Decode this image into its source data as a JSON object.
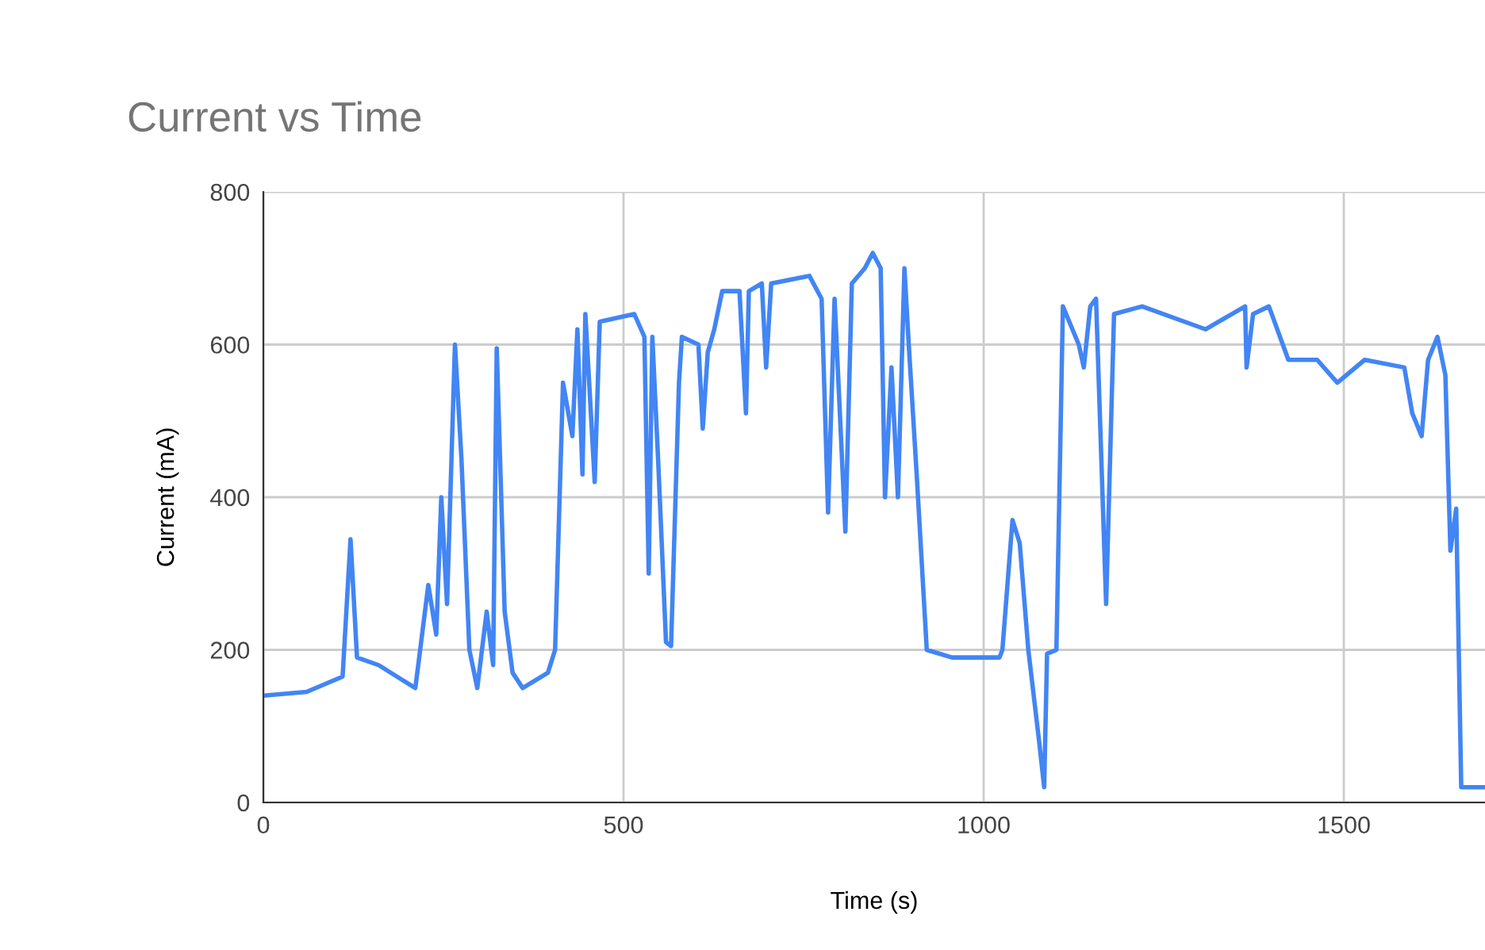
{
  "chart_data": {
    "type": "line",
    "title": "Current vs Time",
    "xlabel": "Time (s)",
    "ylabel": "Current (mA)",
    "xlim": [
      0,
      1696
    ],
    "ylim": [
      0,
      800
    ],
    "xticks": [
      0,
      500,
      1000,
      1500
    ],
    "yticks": [
      0,
      200,
      400,
      600,
      800
    ],
    "grid": true,
    "legend": false,
    "series": [
      {
        "color": "#4285f4",
        "x": [
          0,
          60,
          110,
          121,
          130,
          160,
          211,
          229,
          240,
          247,
          255,
          266,
          275,
          286,
          297,
          310,
          319,
          324,
          335,
          346,
          360,
          395,
          405,
          416,
          429,
          436,
          443,
          447,
          460,
          467,
          515,
          529,
          535,
          540,
          548,
          559,
          566,
          577,
          581,
          604,
          610,
          617,
          626,
          637,
          661,
          670,
          674,
          692,
          698,
          705,
          758,
          775,
          784,
          793,
          808,
          817,
          835,
          846,
          857,
          863,
          872,
          881,
          890,
          896,
          907,
          921,
          956,
          1022,
          1026,
          1040,
          1050,
          1062,
          1077,
          1084,
          1088,
          1101,
          1110,
          1132,
          1139,
          1148,
          1156,
          1170,
          1181,
          1220,
          1308,
          1363,
          1365,
          1374,
          1396,
          1423,
          1463,
          1491,
          1529,
          1584,
          1595,
          1608,
          1617,
          1630,
          1641,
          1648,
          1656,
          1663,
          1696
        ],
        "values": [
          140,
          145,
          165,
          345,
          190,
          180,
          150,
          285,
          220,
          400,
          260,
          600,
          450,
          200,
          150,
          250,
          180,
          595,
          250,
          170,
          150,
          170,
          200,
          550,
          480,
          620,
          430,
          640,
          420,
          630,
          640,
          610,
          300,
          610,
          450,
          210,
          205,
          550,
          610,
          600,
          490,
          590,
          620,
          670,
          670,
          510,
          670,
          680,
          570,
          680,
          690,
          660,
          380,
          660,
          355,
          680,
          700,
          720,
          700,
          400,
          570,
          400,
          700,
          600,
          430,
          200,
          190,
          190,
          200,
          370,
          340,
          200,
          80,
          20,
          195,
          200,
          650,
          600,
          570,
          650,
          660,
          260,
          640,
          650,
          620,
          650,
          570,
          640,
          650,
          580,
          580,
          550,
          580,
          570,
          510,
          480,
          580,
          610,
          560,
          330,
          385,
          20,
          20
        ]
      }
    ]
  }
}
